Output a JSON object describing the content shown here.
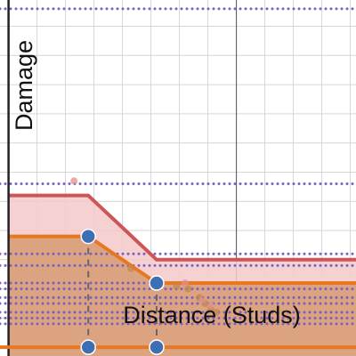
{
  "chart_data": {
    "type": "line",
    "title": "",
    "xlabel": "Distance (Studs)",
    "ylabel": "Damage",
    "grid": true,
    "xlim": [
      -0.15,
      6.1
    ],
    "ylim": [
      -0.15,
      5.95
    ],
    "x_axis_position": 0,
    "y_axis_position": 0,
    "major_gridline_x": 4,
    "dotted_reference_levels": [
      5.8,
      2.8,
      1.6,
      1.4,
      1.1,
      1.0,
      0.85,
      0.75,
      0.6,
      0.5,
      0.4
    ],
    "series": [
      {
        "color": "#cc5555",
        "fill": "#f3c9c9",
        "points": [
          [
            0,
            2.6
          ],
          [
            1.4,
            2.6
          ],
          [
            2.6,
            1.5
          ],
          [
            6.1,
            1.5
          ]
        ]
      },
      {
        "color": "#e87722",
        "fill": "#d9a07a",
        "points": [
          [
            0,
            1.9
          ],
          [
            1.4,
            1.9
          ],
          [
            2.6,
            1.1
          ],
          [
            6.1,
            1.1
          ]
        ]
      }
    ],
    "control_points": [
      {
        "color": "#3c6fb4",
        "x": 1.4,
        "y": 1.9
      },
      {
        "color": "#3c6fb4",
        "x": 2.6,
        "y": 1.1
      },
      {
        "color": "#3c6fb4",
        "x": 1.4,
        "y": 0
      },
      {
        "color": "#3c6fb4",
        "x": 2.6,
        "y": 0
      }
    ],
    "faint_points": [
      {
        "color": "#e09090",
        "x": 1.15,
        "y": 2.85
      },
      {
        "color": "#c2884a",
        "x": 2.15,
        "y": 1.35
      },
      {
        "color": "#c2884a",
        "x": 2.95,
        "y": 1.05
      },
      {
        "color": "#c2884a",
        "x": 3.15,
        "y": 1.0
      },
      {
        "color": "#c2884a",
        "x": 3.35,
        "y": 0.85
      },
      {
        "color": "#c2884a",
        "x": 3.45,
        "y": 0.75
      },
      {
        "color": "#c2884a",
        "x": 3.55,
        "y": 0.65
      },
      {
        "color": "#c2884a",
        "x": 3.65,
        "y": 0.6
      },
      {
        "color": "#e09090",
        "x": 3.1,
        "y": 1.1
      },
      {
        "color": "#e09090",
        "x": 3.4,
        "y": 0.8
      },
      {
        "color": "#e09090",
        "x": 3.55,
        "y": 0.72
      }
    ],
    "colors": {
      "grid": "#d6d6d6",
      "major_grid": "#555555",
      "axes": "#222222",
      "dotted": "#7b5fc2",
      "dashed_guides": "#666666"
    }
  }
}
